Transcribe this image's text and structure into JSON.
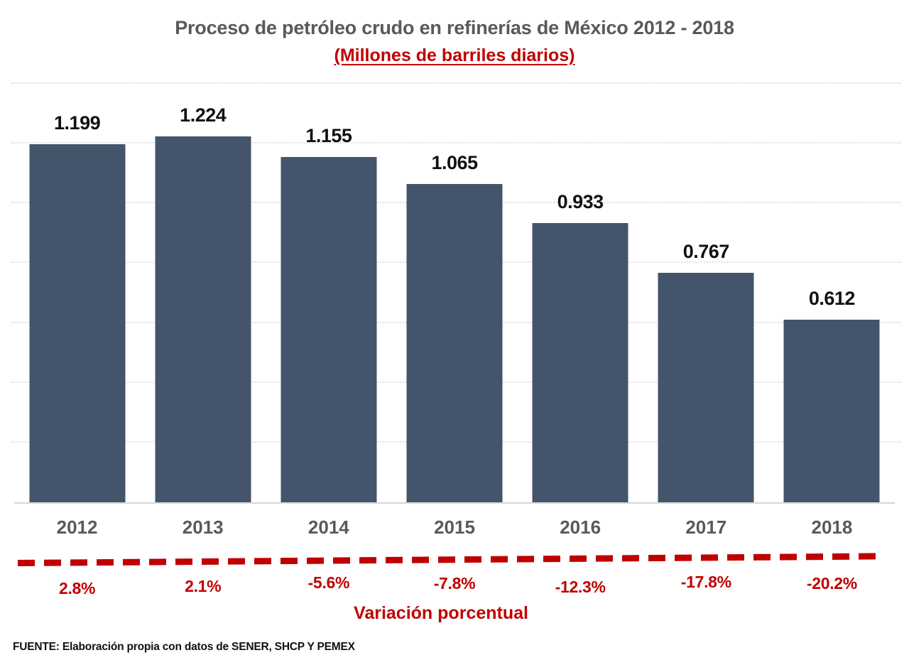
{
  "title": "Proceso de petróleo crudo en refinerías de México 2012 - 2018",
  "subtitle": "(Millones de barriles diarios)",
  "variation_title": "Variación porcentual",
  "footer": "FUENTE: Elaboración propia con datos de SENER, SHCP Y PEMEX",
  "colors": {
    "bar": "#44546A",
    "red": "#C00000",
    "title_gray": "#595959",
    "grid_gray": "#E0E0E0"
  },
  "chart_data": {
    "type": "bar",
    "title": "Proceso de petróleo crudo en refinerías de México 2012 - 2018",
    "subtitle": "(Millones de barriles diarios)",
    "categories": [
      "2012",
      "2013",
      "2014",
      "2015",
      "2016",
      "2017",
      "2018"
    ],
    "series": [
      {
        "name": "Proceso de petróleo crudo (millones de barriles diarios)",
        "values": [
          1.199,
          1.224,
          1.155,
          1.065,
          0.933,
          0.767,
          0.612
        ]
      }
    ],
    "variation": {
      "name": "Variación porcentual",
      "values": [
        2.8,
        2.1,
        -5.6,
        -7.8,
        -12.3,
        -17.8,
        -20.2
      ],
      "labels": [
        "2.8%",
        "2.1%",
        "-5.6%",
        "-7.8%",
        "-12.3%",
        "-17.8%",
        "-20.2%"
      ]
    },
    "xlabel": "",
    "ylabel": "Millones de barriles diarios",
    "ylim": [
      0,
      1.4
    ],
    "grid_step": 0.2,
    "grid": true,
    "legend_position": "none",
    "source": "FUENTE: Elaboración propia con datos de SENER, SHCP Y PEMEX"
  }
}
